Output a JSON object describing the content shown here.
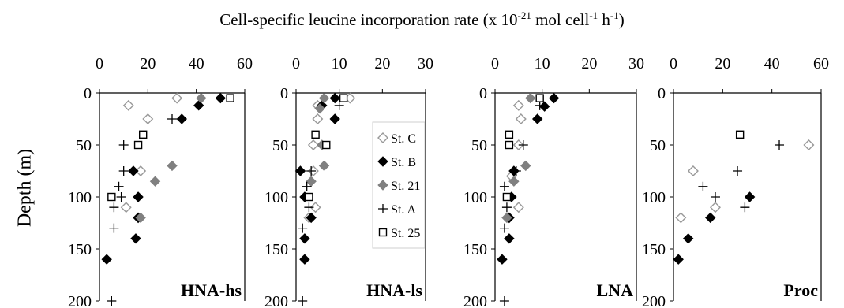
{
  "chart_data": {
    "type": "scatter",
    "title_parts": {
      "pre": "Cell-specific leucine incorporation rate (x 10",
      "exp1": "-21",
      "mid1": " mol cell",
      "exp2": "-1",
      "mid2": " h",
      "exp3": "-1",
      "post": ")"
    },
    "ylabel": "Depth (m)",
    "y_ticks": [
      0,
      50,
      100,
      150,
      200
    ],
    "ylim": [
      0,
      200
    ],
    "y_inverted": true,
    "series_styles": [
      {
        "name": "St. C",
        "marker": "diamond-open",
        "color": "#999999"
      },
      {
        "name": "St. B",
        "marker": "diamond-filled",
        "color": "#000000"
      },
      {
        "name": "St. 21",
        "marker": "diamond-filled",
        "color": "#808080"
      },
      {
        "name": "St. A",
        "marker": "plus",
        "color": "#000000"
      },
      {
        "name": "St. 25",
        "marker": "square-open",
        "color": "#000000"
      }
    ],
    "legend_position": "inside panel 2, upper right",
    "panels": [
      {
        "label": "HNA-hs",
        "xlim": [
          0,
          60
        ],
        "x_ticks": [
          0,
          20,
          40,
          60
        ],
        "series": [
          {
            "name": "St. C",
            "points": [
              [
                32,
                5
              ],
              [
                12,
                12
              ],
              [
                20,
                25
              ],
              [
                17,
                75
              ],
              [
                11,
                110
              ],
              [
                16,
                120
              ]
            ]
          },
          {
            "name": "St. B",
            "points": [
              [
                50,
                5
              ],
              [
                41,
                12
              ],
              [
                34,
                25
              ],
              [
                14,
                75
              ],
              [
                16,
                100
              ],
              [
                16,
                120
              ],
              [
                15,
                140
              ],
              [
                3,
                160
              ]
            ]
          },
          {
            "name": "St. 21",
            "points": [
              [
                42,
                5
              ],
              [
                30,
                70
              ],
              [
                23,
                85
              ],
              [
                17,
                120
              ]
            ]
          },
          {
            "name": "St. A",
            "points": [
              [
                30,
                25
              ],
              [
                10,
                50
              ],
              [
                10,
                75
              ],
              [
                8,
                90
              ],
              [
                9,
                100
              ],
              [
                6,
                110
              ],
              [
                6,
                130
              ],
              [
                5,
                200
              ]
            ]
          },
          {
            "name": "St. 25",
            "points": [
              [
                54,
                5
              ],
              [
                18,
                40
              ],
              [
                16,
                50
              ],
              [
                5,
                100
              ]
            ]
          }
        ]
      },
      {
        "label": "HNA-ls",
        "xlim": [
          0,
          30
        ],
        "x_ticks": [
          0,
          10,
          20,
          30
        ],
        "series": [
          {
            "name": "St. C",
            "points": [
              [
                12.5,
                5
              ],
              [
                5,
                12
              ],
              [
                5,
                25
              ],
              [
                4,
                50
              ],
              [
                4,
                75
              ],
              [
                4.5,
                110
              ],
              [
                3,
                120
              ]
            ]
          },
          {
            "name": "St. B",
            "points": [
              [
                9,
                5
              ],
              [
                6,
                12
              ],
              [
                9,
                25
              ],
              [
                1,
                75
              ],
              [
                2,
                100
              ],
              [
                3.5,
                120
              ],
              [
                2,
                140
              ],
              [
                2,
                160
              ]
            ]
          },
          {
            "name": "St. 21",
            "points": [
              [
                6.5,
                5
              ],
              [
                5.5,
                15
              ],
              [
                6,
                50
              ],
              [
                6.5,
                70
              ],
              [
                3.5,
                85
              ]
            ]
          },
          {
            "name": "St. A",
            "points": [
              [
                10,
                12
              ],
              [
                3.5,
                75
              ],
              [
                2.5,
                90
              ],
              [
                3,
                110
              ],
              [
                1.5,
                130
              ],
              [
                1.5,
                200
              ]
            ]
          },
          {
            "name": "St. 25",
            "points": [
              [
                11,
                5
              ],
              [
                4.5,
                40
              ],
              [
                7,
                50
              ],
              [
                3,
                100
              ]
            ]
          }
        ]
      },
      {
        "label": "LNA",
        "xlim": [
          0,
          30
        ],
        "x_ticks": [
          0,
          10,
          20,
          30
        ],
        "series": [
          {
            "name": "St. C",
            "points": [
              [
                5,
                12
              ],
              [
                5.5,
                25
              ],
              [
                5,
                50
              ],
              [
                3.5,
                80
              ],
              [
                5,
                110
              ],
              [
                3,
                120
              ]
            ]
          },
          {
            "name": "St. B",
            "points": [
              [
                12.5,
                5
              ],
              [
                10.5,
                13
              ],
              [
                9,
                25
              ],
              [
                4,
                75
              ],
              [
                3.5,
                100
              ],
              [
                3,
                120
              ],
              [
                3,
                140
              ],
              [
                1.5,
                160
              ]
            ]
          },
          {
            "name": "St. 21",
            "points": [
              [
                7.5,
                5
              ],
              [
                6.5,
                70
              ],
              [
                4,
                85
              ],
              [
                2.5,
                120
              ]
            ]
          },
          {
            "name": "St. A",
            "points": [
              [
                9.5,
                12
              ],
              [
                6,
                50
              ],
              [
                4.5,
                75
              ],
              [
                2,
                90
              ],
              [
                2.5,
                110
              ],
              [
                2,
                130
              ],
              [
                2,
                200
              ]
            ]
          },
          {
            "name": "St. 25",
            "points": [
              [
                9.5,
                5
              ],
              [
                3,
                40
              ],
              [
                3,
                50
              ],
              [
                2.5,
                100
              ]
            ]
          }
        ]
      },
      {
        "label": "Proc",
        "xlim": [
          0,
          60
        ],
        "x_ticks": [
          0,
          20,
          40,
          60
        ],
        "series": [
          {
            "name": "St. C",
            "points": [
              [
                55,
                50
              ],
              [
                8,
                75
              ],
              [
                17,
                110
              ],
              [
                3,
                120
              ]
            ]
          },
          {
            "name": "St. B",
            "points": [
              [
                31,
                100
              ],
              [
                15,
                120
              ],
              [
                6,
                140
              ],
              [
                2,
                160
              ]
            ]
          },
          {
            "name": "St. 21",
            "points": []
          },
          {
            "name": "St. A",
            "points": [
              [
                43,
                50
              ],
              [
                26,
                75
              ],
              [
                12,
                90
              ],
              [
                17,
                100
              ],
              [
                29,
                110
              ]
            ]
          },
          {
            "name": "St. 25",
            "points": [
              [
                27,
                40
              ]
            ]
          }
        ]
      }
    ]
  }
}
